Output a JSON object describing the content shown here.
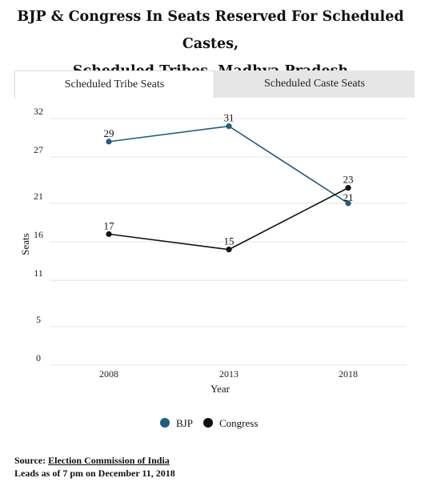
{
  "title_line1": "BJP & Congress In Seats Reserved For Scheduled Castes,",
  "title_line2": "Scheduled Tribes, Madhya Pradesh",
  "tabs": [
    {
      "label": "Scheduled Tribe Seats",
      "active": true
    },
    {
      "label": "Scheduled Caste Seats",
      "active": false
    }
  ],
  "legend": [
    {
      "label": "BJP",
      "color": "#1f5e7e"
    },
    {
      "label": "Congress",
      "color": "#111111"
    }
  ],
  "source": {
    "prefix": "Source: ",
    "link_text": "Election Commission of India",
    "note": "Leads as of 7 pm on December 11, 2018"
  },
  "chart_data": {
    "type": "line",
    "xlabel": "Year",
    "ylabel": "Seats",
    "x": [
      "2008",
      "2013",
      "2018"
    ],
    "yticks": [
      0,
      5,
      11,
      16,
      21,
      27,
      32
    ],
    "ylim": [
      0,
      32
    ],
    "grid": true,
    "legend_position": "bottom-center",
    "series": [
      {
        "name": "BJP",
        "color": "#1f5e7e",
        "values": [
          29,
          31,
          21
        ]
      },
      {
        "name": "Congress",
        "color": "#111111",
        "values": [
          17,
          15,
          23
        ]
      }
    ]
  }
}
